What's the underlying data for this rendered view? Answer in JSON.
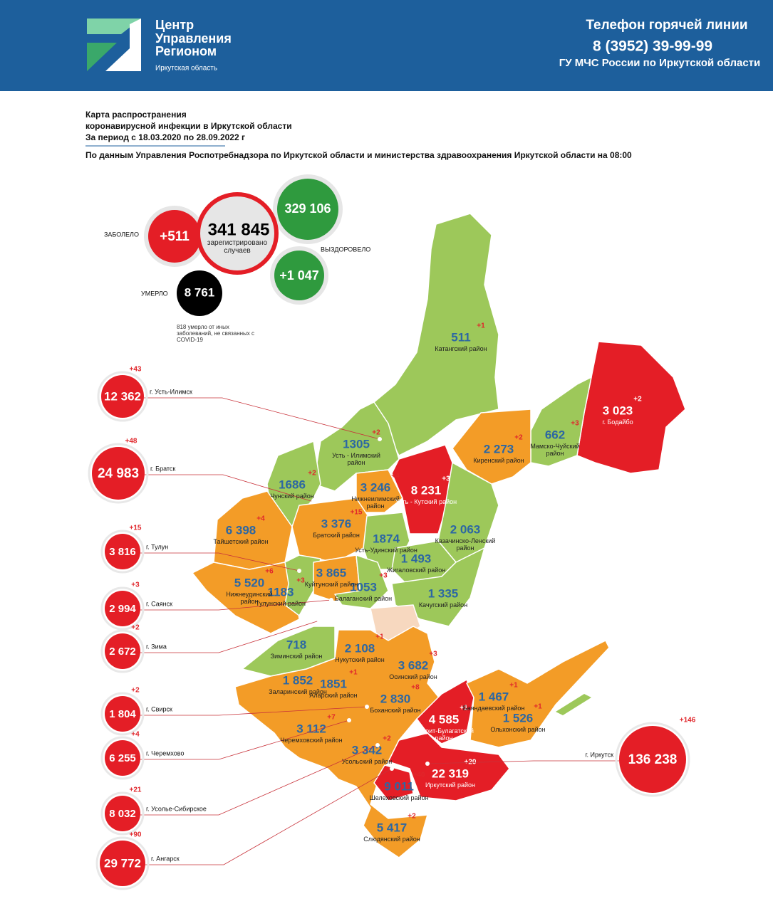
{
  "header": {
    "logo": [
      "Центр",
      "Управления",
      "Регионом"
    ],
    "logo_region": "Иркутская область",
    "hotline_title": "Телефон горячей линии",
    "hotline_phone": "8 (3952) 39-99-99",
    "hotline_org": "ГУ МЧС России по Иркутской области"
  },
  "intro": {
    "title": [
      "Карта распространения",
      "коронавирусной инфекции в Иркутской области",
      "За период с 18.03.2020 по 28.09.2022 г"
    ],
    "source": "По данным Управления Роспотребнадзора по Иркутской области и министерства здравоохранения Иркутской области на 08:00"
  },
  "summary": {
    "sick_label": "ЗАБОЛЕЛО",
    "sick_new": "+511",
    "total": "341 845",
    "total_caption": "зарегистрировано случаев",
    "recovered_total": "329 106",
    "recovered_label": "ВЫЗДОРОВЕЛО",
    "recovered_new": "+1 047",
    "died_label": "УМЕРЛО",
    "died": "8 761",
    "died_note": "818 умерло от иных заболеваний, не связанных с COVID-19"
  },
  "cities": [
    {
      "name": "г. Усть-Илимск",
      "total": "12 362",
      "change": "+43"
    },
    {
      "name": "г. Братск",
      "total": "24 983",
      "change": "+48"
    },
    {
      "name": "г. Тулун",
      "total": "3 816",
      "change": "+15"
    },
    {
      "name": "г. Саянск",
      "total": "2 994",
      "change": "+3"
    },
    {
      "name": "г. Зима",
      "total": "2 672",
      "change": "+2"
    },
    {
      "name": "г. Свирск",
      "total": "1 804",
      "change": "+2"
    },
    {
      "name": "г. Черемхово",
      "total": "6 255",
      "change": "+4"
    },
    {
      "name": "г. Усолье-Сибирское",
      "total": "8 032",
      "change": "+21"
    },
    {
      "name": "г. Ангарск",
      "total": "29 772",
      "change": "+90"
    },
    {
      "name": "г. Иркутск",
      "total": "136 238",
      "change": "+146"
    }
  ],
  "districts": [
    {
      "name": "Катангский район",
      "total": "511",
      "change": "+1"
    },
    {
      "name": "г. Бодайбо",
      "total": "3 023",
      "change": "+2"
    },
    {
      "name": "Мамско-Чуйский район",
      "total": "662",
      "change": "+3"
    },
    {
      "name": "Киренский район",
      "total": "2 273",
      "change": "+2"
    },
    {
      "name": "Усть - Илимский район",
      "total": "1305",
      "change": "+2"
    },
    {
      "name": "Чунский район",
      "total": "1686",
      "change": "+2"
    },
    {
      "name": "Нижнеилимский район",
      "total": "3 246",
      "change": "+4"
    },
    {
      "name": "Усть - Кутский район",
      "total": "8 231",
      "change": "+3"
    },
    {
      "name": "Тайшетский район",
      "total": "6 398",
      "change": "+4"
    },
    {
      "name": "Братский район",
      "total": "3 376",
      "change": "+15"
    },
    {
      "name": "Усть-Удинский район",
      "total": "1874"
    },
    {
      "name": "Казачинско-Ленский район",
      "total": "2 063"
    },
    {
      "name": "Жигаловский район",
      "total": "1 493"
    },
    {
      "name": "Нижнеудинский район",
      "total": "5 520",
      "change": "+6"
    },
    {
      "name": "Куйтунский район",
      "total": "3 865"
    },
    {
      "name": "Тулунский район",
      "total": "1183",
      "change": "+3"
    },
    {
      "name": "Балаганский район",
      "total": "1053",
      "change": "+3"
    },
    {
      "name": "Качугский район",
      "total": "1 335"
    },
    {
      "name": "Зиминский район",
      "total": "718"
    },
    {
      "name": "Нукутский район",
      "total": "2 108",
      "change": "+1"
    },
    {
      "name": "Осинский район",
      "total": "3 682",
      "change": "+3"
    },
    {
      "name": "Заларинский район",
      "total": "1 852"
    },
    {
      "name": "Аларский район",
      "total": "1851",
      "change": "+1"
    },
    {
      "name": "Боханский район",
      "total": "2 830",
      "change": "+8"
    },
    {
      "name": "Баяндаевский район",
      "total": "1 467",
      "change": "+1"
    },
    {
      "name": "Эхирит-Булагатский район",
      "total": "4 585",
      "change": "+1"
    },
    {
      "name": "Ольхонский район",
      "total": "1 526",
      "change": "+1"
    },
    {
      "name": "Черемховский район",
      "total": "3 112",
      "change": "+7"
    },
    {
      "name": "Усольский район",
      "total": "3 342",
      "change": "+2"
    },
    {
      "name": "Иркутский район",
      "total": "22 319",
      "change": "+20"
    },
    {
      "name": "Шелеховский район",
      "total": "9 011",
      "change": "+40"
    },
    {
      "name": "Слюдянский район",
      "total": "5 417",
      "change": "+2"
    }
  ]
}
